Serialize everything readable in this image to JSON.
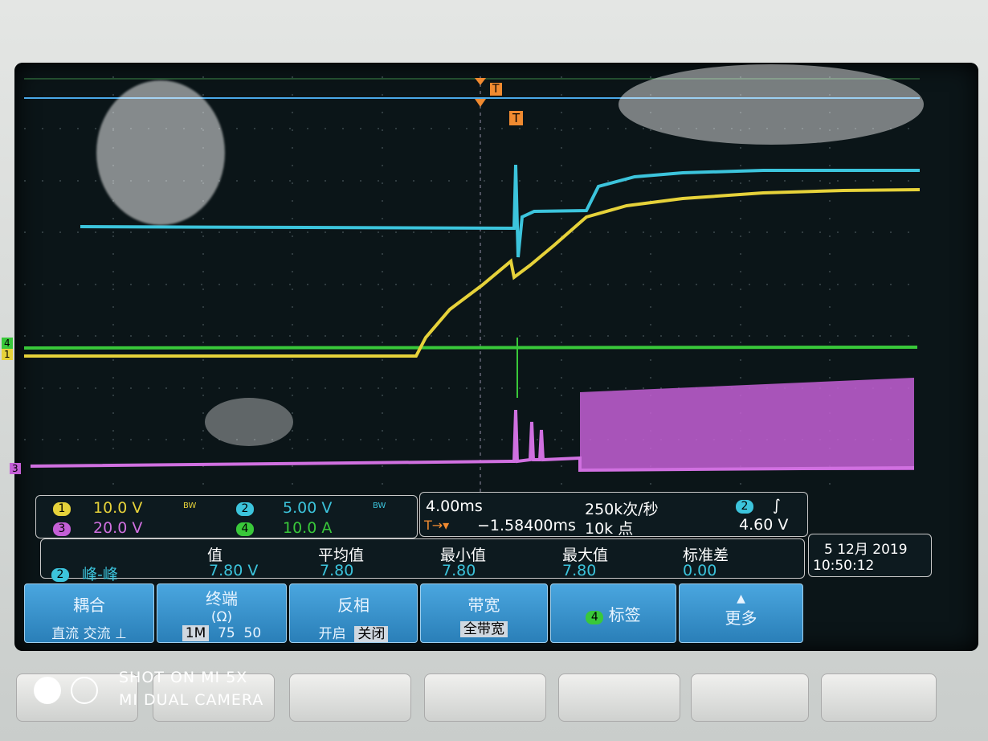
{
  "screen": {
    "trigger_marker": "T",
    "trigger_marker_top": "T",
    "channel_markers": [
      "1",
      "3",
      "4"
    ]
  },
  "channels": [
    {
      "number": "1",
      "scale": "10.0 V",
      "bw": "BW"
    },
    {
      "number": "2",
      "scale": "5.00 V",
      "bw": "BW"
    },
    {
      "number": "3",
      "scale": "20.0 V"
    },
    {
      "number": "4",
      "scale": "10.0 A"
    }
  ],
  "timebase": {
    "scale": "4.00ms",
    "sample_rate": "250k次/秒",
    "trigger_icon": "T→▾",
    "trigger_position": "−1.58400ms",
    "record_length": "10k 点"
  },
  "trigger": {
    "source": "2",
    "slope": "∫",
    "level": "4.60 V"
  },
  "measurements": {
    "headers": [
      "值",
      "平均值",
      "最小值",
      "最大值",
      "标准差"
    ],
    "channel": "2",
    "type": "峰-峰",
    "values": [
      "7.80 V",
      "7.80",
      "7.80",
      "7.80",
      "0.00"
    ]
  },
  "datetime": {
    "date": "5 12月 2019",
    "time": "10:50:12"
  },
  "menu": [
    {
      "label": "耦合",
      "options": [
        "直流",
        "交流",
        "⊥"
      ]
    },
    {
      "label": "终端",
      "unit": "(Ω)",
      "options": [
        "1M",
        "75",
        "50"
      ]
    },
    {
      "label": "反相",
      "options": [
        "开启",
        "关闭"
      ]
    },
    {
      "label": "带宽",
      "options": [
        "全带宽"
      ]
    },
    {
      "channel": "4",
      "label": "标签"
    },
    {
      "label": "更多"
    }
  ],
  "watermark": [
    "SHOT ON MI 5X",
    "MI DUAL CAMERA"
  ]
}
